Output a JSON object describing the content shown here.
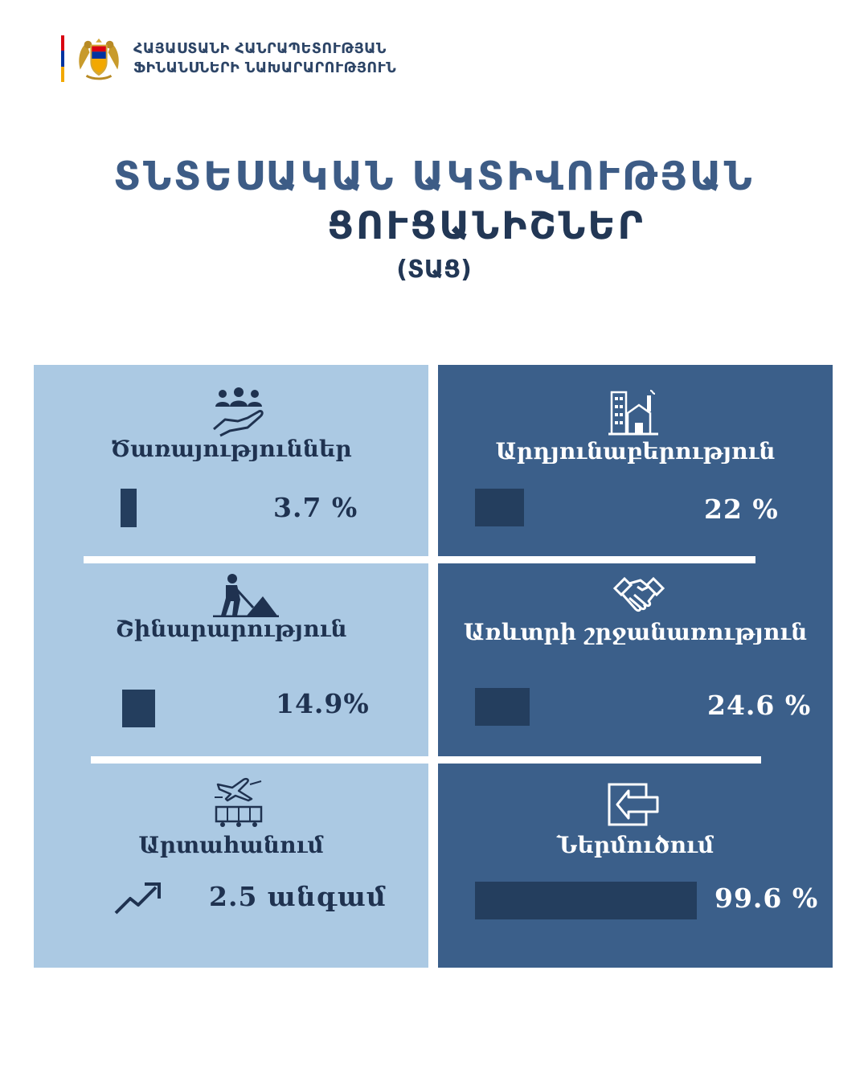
{
  "header": {
    "line1": "ՀԱՅԱՍՏԱՆԻ ՀԱՆՐԱՊԵՏՈՒԹՅԱՆ",
    "line2": "ՖԻՆԱՆՍՆԵՐԻ ՆԱԽԱՐԱՐՈՒԹՅՈՒՆ",
    "flag_colors": [
      "#d90012",
      "#0033a0",
      "#f2a800"
    ]
  },
  "title": {
    "line1": "ՏՆՏԵՍԱԿԱՆ ԱԿՏԻՎՈՒԹՅԱՆ",
    "line2": "ՑՈՒՑԱՆԻՇՆԵՐ",
    "line3": "(ՏԱՑ)"
  },
  "colors": {
    "light_panel": "#abc9e3",
    "dark_panel": "#3b5f8a",
    "bar": "#243e5e",
    "title_blue": "#3d5c86",
    "navy": "#223755"
  },
  "chart_data": {
    "type": "bar",
    "title": "ՏՆՏԵՍԱԿԱՆ ԱԿՏԻՎՈՒԹՅԱՆ ՑՈՒՑԱՆԻՇՆԵՐ (ՏԱՑ)",
    "unit": "%",
    "items": [
      {
        "label": "Ծառայություններ",
        "value": 3.7,
        "display": "3.7 %",
        "icon": "people-hand-icon"
      },
      {
        "label": "Արդյունաբերություն",
        "value": 22,
        "display": "22 %",
        "icon": "factory-icon"
      },
      {
        "label": "Շինարարություն",
        "value": 14.9,
        "display": "14.9%",
        "icon": "construction-worker-icon"
      },
      {
        "label": "Առևտրի շրջանառություն",
        "value": 24.6,
        "display": "24.6 %",
        "icon": "handshake-icon"
      },
      {
        "label": "Արտահանում",
        "value": 2.5,
        "display": "2.5 անգամ",
        "unit": "անգամ",
        "icon": "trend-up-arrow-icon"
      },
      {
        "label": "Ներմուծում",
        "value": 99.6,
        "display": "99.6 %",
        "icon": "import-arrow-icon"
      }
    ]
  }
}
